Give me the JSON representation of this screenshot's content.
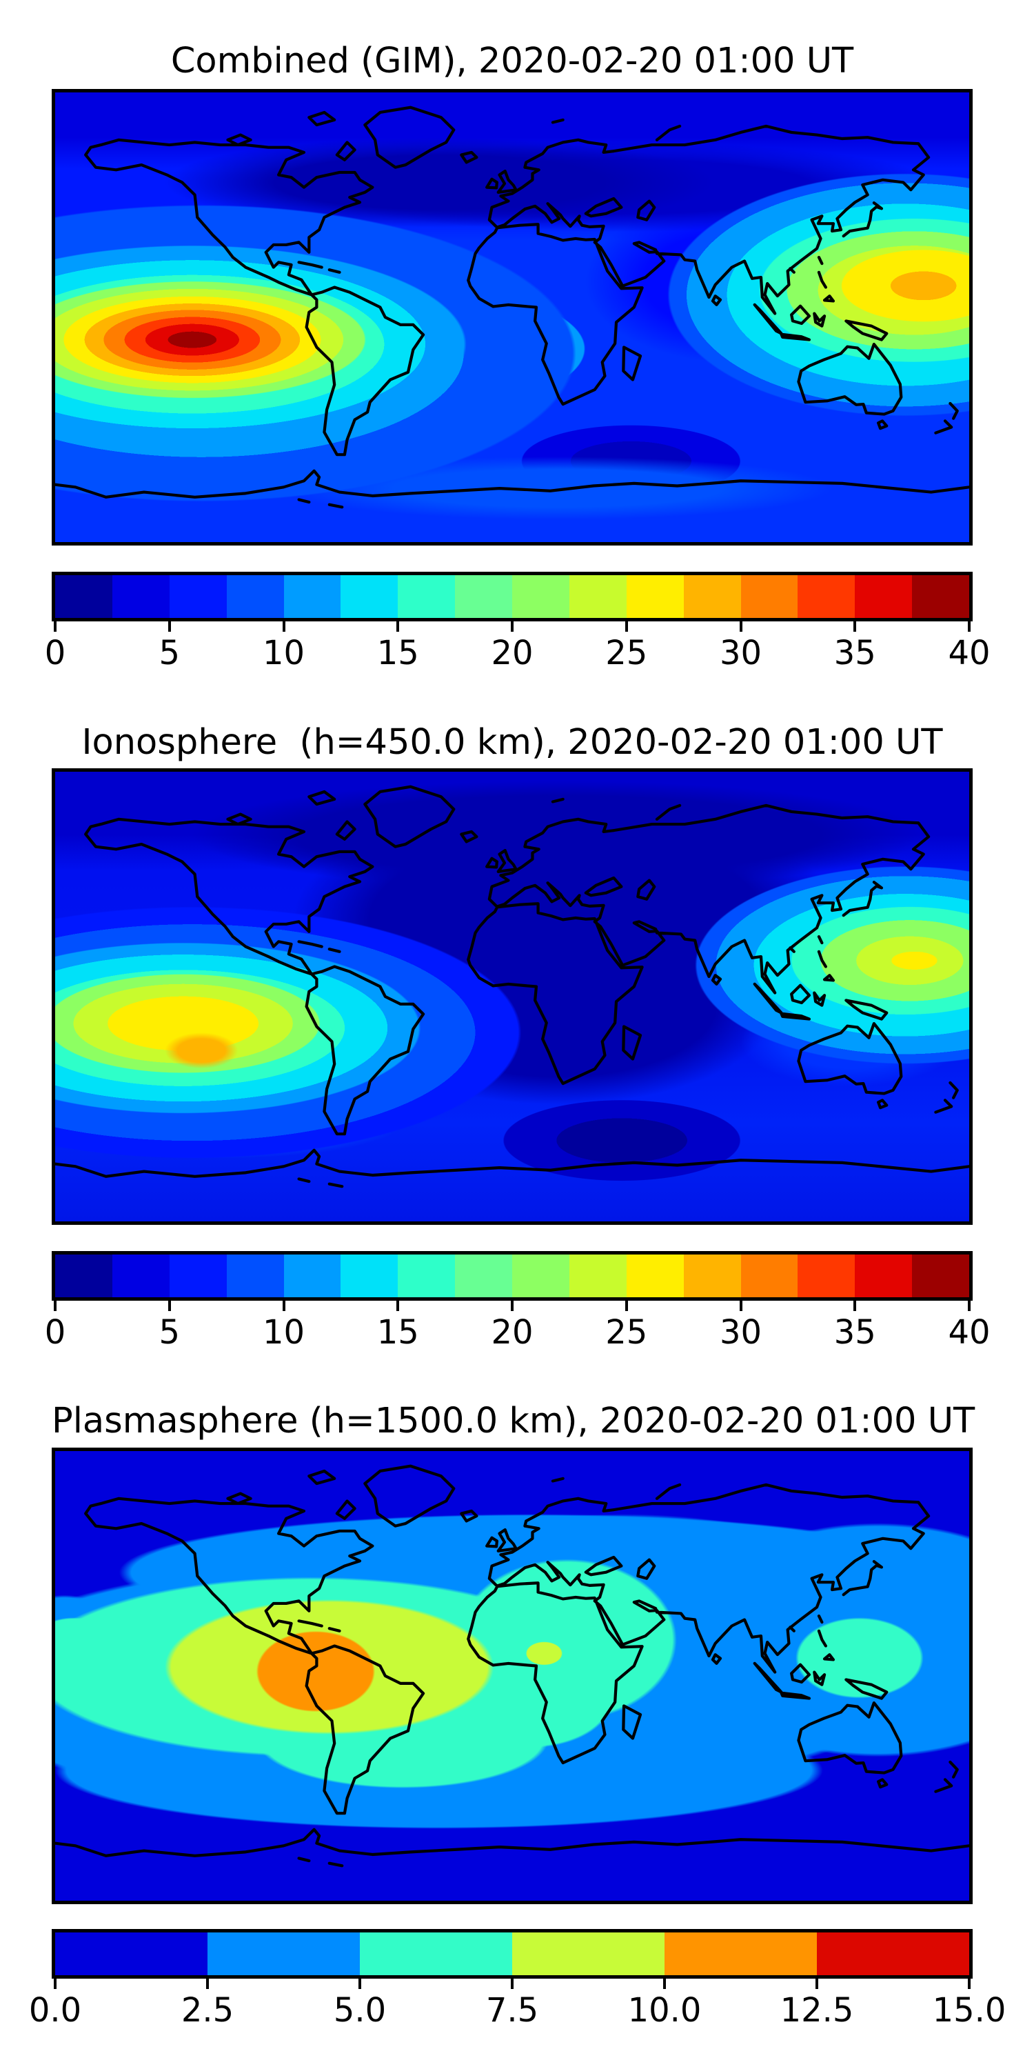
{
  "figure": {
    "background": "#ffffff",
    "description": "Three stacked global TEC contour maps (jet colormap) with horizontal colorbars"
  },
  "panels": [
    {
      "id": "combined",
      "title": "Combined (GIM), 2020-02-20 01:00 UT",
      "colorbar": {
        "min": 0,
        "max": 40,
        "tick_labels": [
          "0",
          "5",
          "10",
          "15",
          "20",
          "25",
          "30",
          "35",
          "40"
        ],
        "segment_colors": [
          "#00009c",
          "#0000e3",
          "#0018ff",
          "#0050ff",
          "#009cff",
          "#00e1f9",
          "#2effc9",
          "#68ff93",
          "#8dff62",
          "#c8fb2d",
          "#ffee00",
          "#ffb400",
          "#ff7d00",
          "#ff3800",
          "#e30400",
          "#9c0000"
        ]
      }
    },
    {
      "id": "ionosphere",
      "title": "Ionosphere  (h=450.0 km), 2020-02-20 01:00 UT",
      "colorbar": {
        "min": 0,
        "max": 40,
        "tick_labels": [
          "0",
          "5",
          "10",
          "15",
          "20",
          "25",
          "30",
          "35",
          "40"
        ],
        "segment_colors": [
          "#00009c",
          "#0000e3",
          "#0018ff",
          "#0050ff",
          "#009cff",
          "#00e1f9",
          "#2effc9",
          "#68ff93",
          "#8dff62",
          "#c8fb2d",
          "#ffee00",
          "#ffb400",
          "#ff7d00",
          "#ff3800",
          "#e30400",
          "#9c0000"
        ]
      }
    },
    {
      "id": "plasmasphere",
      "title": "Plasmasphere (h=1500.0 km), 2020-02-20 01:00 UT",
      "colorbar": {
        "min": 0,
        "max": 15,
        "tick_labels": [
          "0.0",
          "2.5",
          "5.0",
          "7.5",
          "10.0",
          "12.5",
          "15.0"
        ],
        "segment_colors": [
          "#0000dc",
          "#008cff",
          "#33fcc8",
          "#c8fb38",
          "#ff9400",
          "#dc0700"
        ]
      }
    }
  ],
  "chart_data": [
    {
      "type": "heatmap",
      "title": "Combined (GIM), 2020-02-20 01:00 UT",
      "projection": "equirectangular world map with black coastlines",
      "lon_range": [
        -180,
        180
      ],
      "lat_range": [
        -90,
        90
      ],
      "colormap": "jet",
      "levels_step": 2.5,
      "colorbar_ticks": [
        0,
        5,
        10,
        15,
        20,
        25,
        30,
        35,
        40
      ],
      "legend_position": "horizontal colorbar below map",
      "features": [
        {
          "label": "primary equatorial-anomaly maximum, SE Pacific west of South America",
          "lon": -126,
          "lat": -10,
          "value": 39
        },
        {
          "label": "secondary maximum, western Pacific near Philippines/Japan",
          "lon": 158,
          "lat": 13,
          "value": 31
        },
        {
          "label": "equatorial Atlantic enhancement",
          "lon": -30,
          "lat": -14,
          "value": 21
        },
        {
          "label": "southern mid-latitude cyan band, SE Pacific",
          "lon": -120,
          "lat": -47,
          "value": 16
        },
        {
          "label": "high-latitude minimum over northern Europe/Arctic",
          "lon": 20,
          "lat": 55,
          "value": 3
        },
        {
          "label": "minimum south Indian Ocean",
          "lon": 47,
          "lat": -57,
          "value": 4
        }
      ]
    },
    {
      "type": "heatmap",
      "title": "Ionosphere  (h=450.0 km), 2020-02-20 01:00 UT",
      "projection": "equirectangular world map with black coastlines",
      "lon_range": [
        -180,
        180
      ],
      "lat_range": [
        -90,
        90
      ],
      "colormap": "jet",
      "levels_step": 2.5,
      "colorbar_ticks": [
        0,
        5,
        10,
        15,
        20,
        25,
        30,
        35,
        40
      ],
      "legend_position": "horizontal colorbar below map",
      "features": [
        {
          "label": "primary maximum, SE Pacific west of South America",
          "lon": -130,
          "lat": -12,
          "value": 31
        },
        {
          "label": "secondary maximum, western Pacific near Philippines",
          "lon": 155,
          "lat": 14,
          "value": 27
        },
        {
          "label": "broad minimum over Europe/Africa/Middle East",
          "lon": 20,
          "lat": 25,
          "value": 2
        },
        {
          "label": "minimum south Indian Ocean",
          "lon": 45,
          "lat": -57,
          "value": 2
        }
      ]
    },
    {
      "type": "heatmap",
      "title": "Plasmasphere (h=1500.0 km), 2020-02-20 01:00 UT",
      "projection": "equirectangular world map with black coastlines",
      "lon_range": [
        -180,
        180
      ],
      "lat_range": [
        -90,
        90
      ],
      "colormap": "jet",
      "levels_step": 2.5,
      "colorbar_ticks": [
        0.0,
        2.5,
        5.0,
        7.5,
        10.0,
        12.5,
        15.0
      ],
      "legend_position": "horizontal colorbar below map",
      "features": [
        {
          "label": "maximum over NW South America (Peru/Colombia)",
          "lon": -77,
          "lat": -2,
          "value": 11.5
        },
        {
          "label": "yellow-green equatorial belt, South America/western Atlantic",
          "lon": -70,
          "lat": -3,
          "value": 9
        },
        {
          "label": "turquoise equatorial band through Africa",
          "lon": 20,
          "lat": 3,
          "value": 6.5
        },
        {
          "label": "small enhanced spot over central Africa",
          "lon": 13,
          "lat": 9,
          "value": 8
        },
        {
          "label": "turquoise patch near New Guinea/Philippines",
          "lon": 137,
          "lat": 7,
          "value": 6
        },
        {
          "label": "high-latitude minimum both hemispheres",
          "lon": 0,
          "lat": 70,
          "value": 1.5
        }
      ]
    }
  ]
}
